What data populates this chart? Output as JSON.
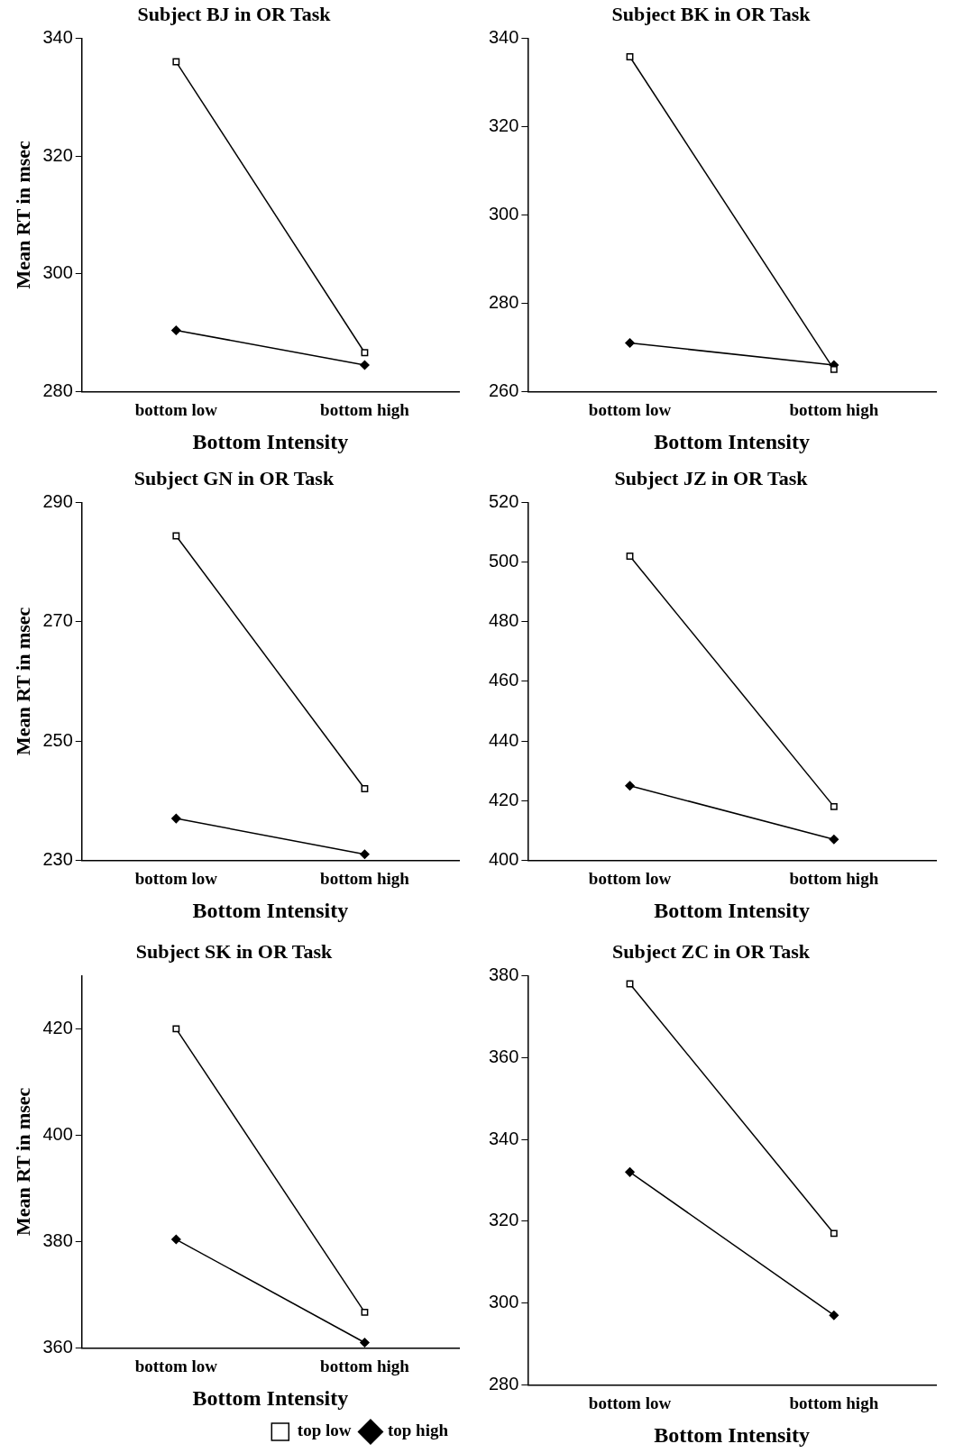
{
  "chart_data": [
    {
      "type": "line",
      "title": "Subject BJ in OR Task",
      "xlabel": "Bottom Intensity",
      "ylabel": "Mean RT in msec",
      "categories": [
        "bottom low",
        "bottom high"
      ],
      "ylim": [
        280,
        340
      ],
      "yticks": [
        280,
        300,
        320,
        340
      ],
      "grid": false,
      "legend": false,
      "series": [
        {
          "color": "#000000",
          "marker": "square",
          "values": [
            336,
            286.6
          ]
        },
        {
          "color": "#000000",
          "marker": "diamond",
          "values": [
            290.4,
            284.5
          ]
        }
      ]
    },
    {
      "type": "line",
      "title": "Subject BK in OR Task",
      "xlabel": "Bottom Intensity",
      "categories": [
        "bottom low",
        "bottom high"
      ],
      "ylim": [
        260,
        340
      ],
      "yticks": [
        260,
        280,
        300,
        320,
        340
      ],
      "grid": false,
      "legend": false,
      "series": [
        {
          "color": "#000000",
          "marker": "square",
          "values": [
            335.8,
            265
          ]
        },
        {
          "color": "#000000",
          "marker": "diamond",
          "values": [
            271,
            266
          ]
        }
      ]
    },
    {
      "type": "line",
      "title": "Subject GN in OR Task",
      "xlabel": "Bottom Intensity",
      "ylabel": "Mean RT in msec",
      "categories": [
        "bottom low",
        "bottom high"
      ],
      "ylim": [
        230,
        290
      ],
      "yticks": [
        230,
        250,
        270,
        290
      ],
      "grid": false,
      "legend": false,
      "series": [
        {
          "color": "#000000",
          "marker": "square",
          "values": [
            284.4,
            242
          ]
        },
        {
          "color": "#000000",
          "marker": "diamond",
          "values": [
            237,
            231
          ]
        }
      ]
    },
    {
      "type": "line",
      "title": "Subject JZ in OR Task",
      "xlabel": "Bottom Intensity",
      "categories": [
        "bottom low",
        "bottom high"
      ],
      "ylim": [
        400,
        520
      ],
      "yticks": [
        400,
        420,
        440,
        460,
        480,
        500,
        520
      ],
      "grid": false,
      "legend": false,
      "series": [
        {
          "color": "#000000",
          "marker": "square",
          "values": [
            502,
            418
          ]
        },
        {
          "color": "#000000",
          "marker": "diamond",
          "values": [
            425,
            407
          ]
        }
      ]
    },
    {
      "type": "line",
      "title": "Subject SK in OR Task",
      "xlabel": "Bottom Intensity",
      "ylabel": "Mean RT in msec",
      "categories": [
        "bottom low",
        "bottom high"
      ],
      "ylim": [
        360,
        430
      ],
      "yticks": [
        360,
        380,
        400,
        420
      ],
      "grid": false,
      "legend": "bottom right",
      "series": [
        {
          "name": "top low",
          "color": "#000000",
          "marker": "square",
          "values": [
            420,
            366.7
          ]
        },
        {
          "name": "top high",
          "color": "#000000",
          "marker": "diamond",
          "values": [
            380.4,
            361
          ]
        }
      ]
    },
    {
      "type": "line",
      "title": "Subject ZC in OR Task",
      "xlabel": "Bottom Intensity",
      "categories": [
        "bottom low",
        "bottom high"
      ],
      "ylim": [
        280,
        380
      ],
      "yticks": [
        280,
        300,
        320,
        340,
        360,
        380
      ],
      "grid": false,
      "legend": false,
      "series": [
        {
          "color": "#000000",
          "marker": "square",
          "values": [
            378,
            317
          ]
        },
        {
          "color": "#000000",
          "marker": "diamond",
          "values": [
            332,
            297
          ]
        }
      ]
    }
  ]
}
